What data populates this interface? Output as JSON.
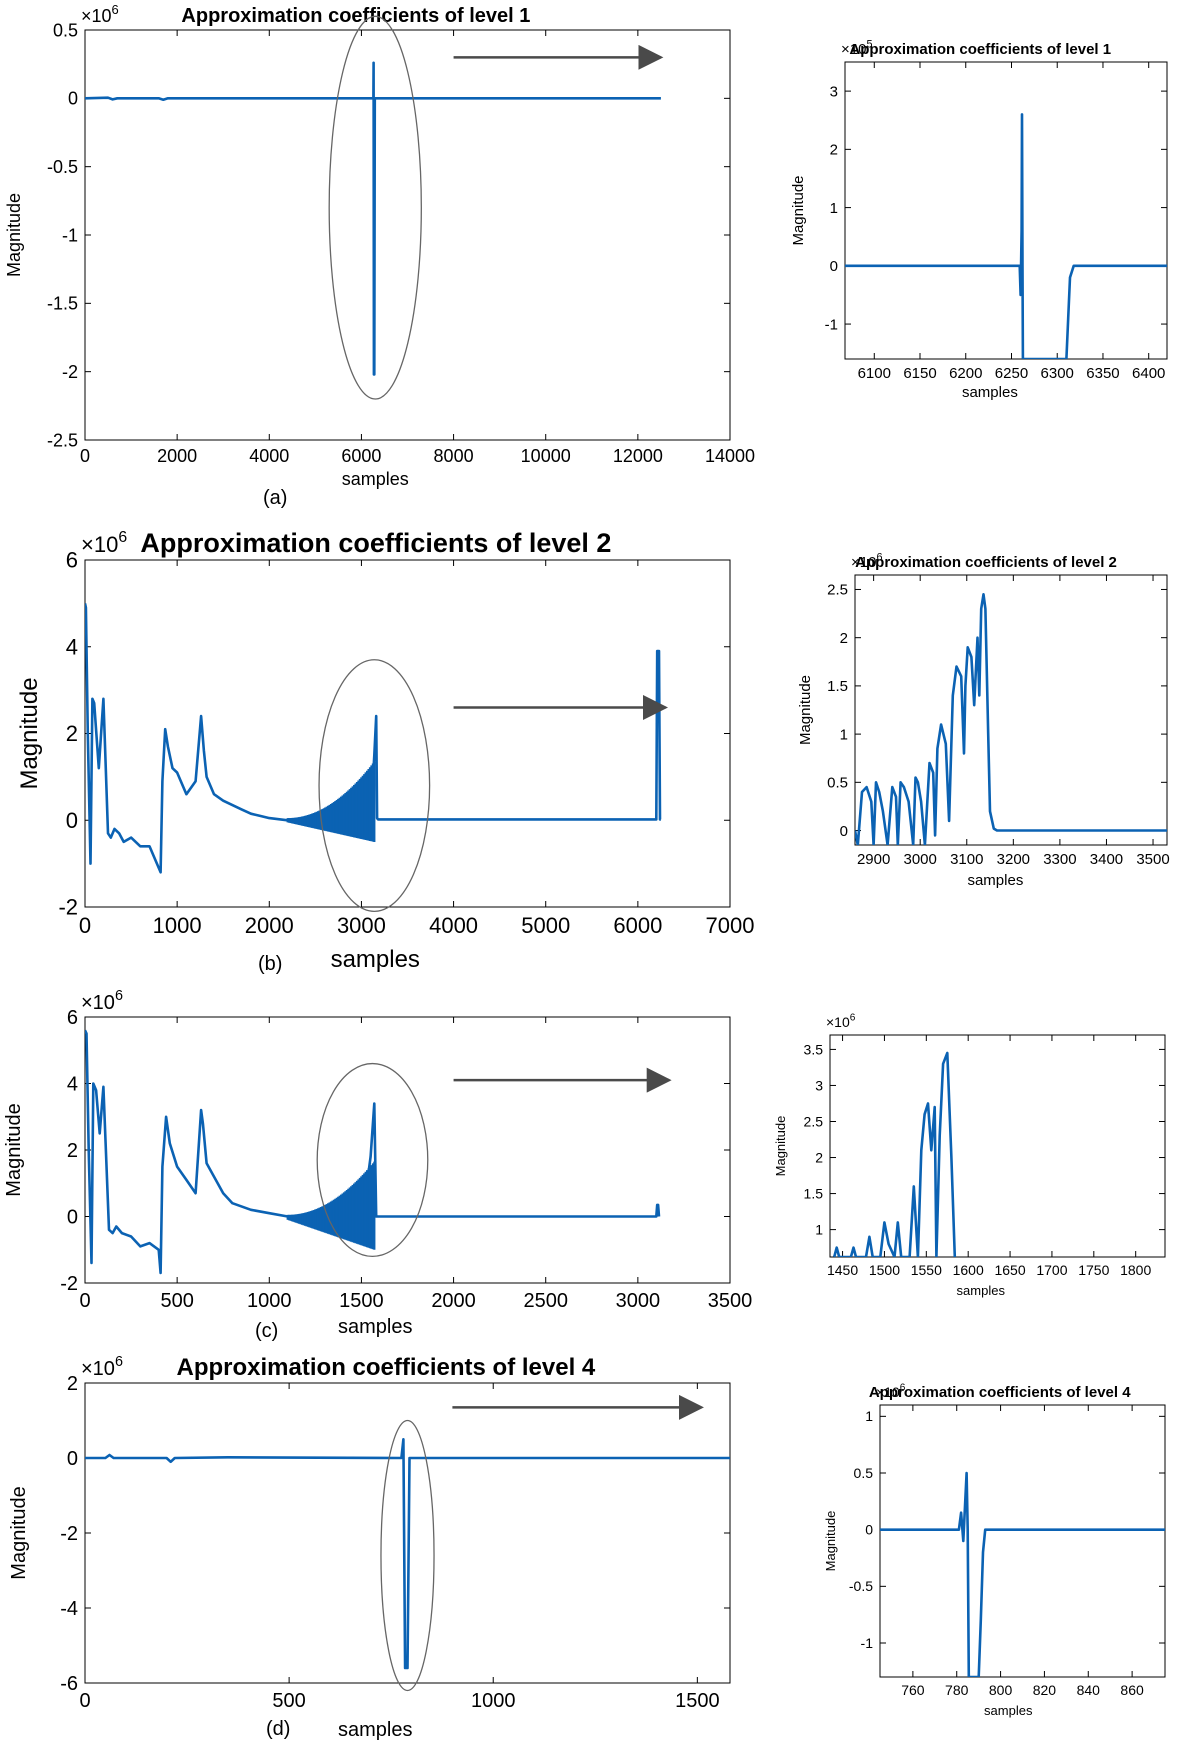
{
  "panel_labels": [
    "(a)",
    "(b)",
    "(c)",
    "(d)"
  ],
  "colors": {
    "line": "#0b62b3",
    "ellipse": "#666666",
    "arrow": "#4a4a4a",
    "axis": "#000000"
  },
  "chart_data": [
    {
      "id": "a-main",
      "type": "line",
      "title": "Approximation coefficients of level 1",
      "xlabel": "samples",
      "ylabel": "Magnitude",
      "exponent": "6",
      "xlim": [
        0,
        14000
      ],
      "ylim": [
        -2.5,
        0.5
      ],
      "xticks": [
        0,
        2000,
        4000,
        6000,
        8000,
        10000,
        12000,
        14000
      ],
      "xtick_labels": [
        "0",
        "2000",
        "4000",
        "6000",
        "8000",
        "10000",
        "12000",
        "14000"
      ],
      "yticks": [
        0.5,
        0,
        -0.5,
        -1,
        -1.5,
        -2,
        -2.5
      ],
      "ytick_labels": [
        "0.5",
        "0",
        "-0.5",
        "-1",
        "-1.5",
        "-2",
        "-2.5"
      ],
      "series": [
        {
          "x": [
            0,
            500,
            600,
            700,
            1600,
            1700,
            1800,
            3000,
            6200,
            6260,
            6265,
            6270,
            6280,
            6290,
            6320,
            9000,
            12500
          ],
          "y": [
            0,
            0.005,
            -0.008,
            0,
            0,
            -0.01,
            0,
            0,
            0,
            0,
            0.26,
            -2.02,
            -2.02,
            0,
            0,
            0,
            0
          ]
        }
      ],
      "highlight_ellipse": {
        "cx": 6300,
        "cy": -0.8,
        "rx": 1000,
        "ry": 1.4
      },
      "arrow": {
        "x1": 8000,
        "x2": 12500,
        "y": 0.3
      }
    },
    {
      "id": "a-zoom",
      "type": "line",
      "title": "Approximation coefficients of level 1",
      "xlabel": "samples",
      "ylabel": "Magnitude",
      "exponent": "5",
      "xlim": [
        6068,
        6420
      ],
      "ylim": [
        -1.6,
        3.5
      ],
      "xticks": [
        6100,
        6150,
        6200,
        6250,
        6300,
        6350,
        6400
      ],
      "xtick_labels": [
        "6100",
        "6150",
        "6200",
        "6250",
        "6300",
        "6350",
        "6400"
      ],
      "yticks": [
        3,
        2,
        1,
        0,
        -1
      ],
      "ytick_labels": [
        "3",
        "2",
        "1",
        "0",
        "-1"
      ],
      "series": [
        {
          "x": [
            6068,
            6258,
            6259,
            6260,
            6261,
            6261.5,
            6262,
            6262.5,
            6310,
            6312,
            6314,
            6318,
            6325,
            6420
          ],
          "y": [
            0,
            0,
            0,
            -0.5,
            0.6,
            2.6,
            0,
            -1.6,
            -1.6,
            -0.9,
            -0.2,
            0,
            0,
            0
          ]
        }
      ]
    },
    {
      "id": "b-main",
      "type": "line",
      "title": "Approximation coefficients of level 2",
      "xlabel": "samples",
      "ylabel": "Magnitude",
      "exponent": "6",
      "xlim": [
        0,
        7000
      ],
      "ylim": [
        -2,
        6
      ],
      "xticks": [
        0,
        1000,
        2000,
        3000,
        4000,
        5000,
        6000,
        7000
      ],
      "xtick_labels": [
        "0",
        "1000",
        "2000",
        "3000",
        "4000",
        "5000",
        "6000",
        "7000"
      ],
      "yticks": [
        6,
        4,
        2,
        0,
        -2
      ],
      "ytick_labels": [
        "6",
        "4",
        "2",
        "0",
        "-2"
      ],
      "series": [
        {
          "x": [
            0,
            10,
            30,
            60,
            80,
            100,
            150,
            200,
            250,
            280,
            320,
            370,
            420,
            500,
            600,
            700,
            820,
            840,
            870,
            900,
            950,
            1000,
            1100,
            1200,
            1260,
            1290,
            1320,
            1400,
            1500,
            1600,
            1700,
            1800,
            1900,
            2000,
            2200,
            2400,
            2600,
            2800,
            3000,
            3100,
            3140,
            3160,
            3170,
            3180,
            3200,
            3600,
            4500,
            5500,
            6200,
            6210,
            6230,
            6240,
            6250
          ],
          "y": [
            5,
            4.9,
            2,
            -1,
            2.8,
            2.7,
            1.2,
            2.8,
            -0.3,
            -0.4,
            -0.2,
            -0.3,
            -0.5,
            -0.4,
            -0.6,
            -0.6,
            -1.2,
            0.9,
            2.1,
            1.7,
            1.2,
            1.1,
            0.6,
            0.9,
            2.4,
            1.6,
            1.0,
            0.6,
            0.45,
            0.35,
            0.25,
            0.15,
            0.1,
            0.05,
            0.0,
            -0.05,
            0.0,
            -0.3,
            -0.3,
            0.0,
            1.5,
            2.4,
            0.05,
            0.02,
            0.02,
            0.02,
            0.02,
            0.02,
            0.02,
            3.9,
            3.9,
            0.02,
            0.02
          ]
        }
      ],
      "highlight_ellipse": {
        "cx": 3140,
        "cy": 0.8,
        "rx": 600,
        "ry": 2.9
      },
      "arrow": {
        "x1": 4000,
        "x2": 6300,
        "y": 2.6
      }
    },
    {
      "id": "b-zoom",
      "type": "line",
      "title": "Approximation coefficients of level 2",
      "xlabel": "samples",
      "ylabel": "Magnitude",
      "exponent": "6",
      "xlim": [
        2860,
        3530
      ],
      "ylim": [
        -0.15,
        2.65
      ],
      "xticks": [
        2900,
        3000,
        3100,
        3200,
        3300,
        3400,
        3500
      ],
      "xtick_labels": [
        "2900",
        "3000",
        "3100",
        "3200",
        "3300",
        "3400",
        "3500"
      ],
      "yticks": [
        2.5,
        2,
        1.5,
        1,
        0.5,
        0
      ],
      "ytick_labels": [
        "2.5",
        "2",
        "1.5",
        "1",
        "0.5",
        "0"
      ],
      "series": [
        {
          "x": [
            2860,
            2866,
            2875,
            2885,
            2895,
            2900,
            2905,
            2912,
            2920,
            2930,
            2940,
            2948,
            2952,
            2958,
            2965,
            2975,
            2985,
            2990,
            2995,
            3002,
            3010,
            3020,
            3028,
            3032,
            3037,
            3045,
            3055,
            3062,
            3065,
            3070,
            3078,
            3088,
            3094,
            3097,
            3102,
            3110,
            3116,
            3119,
            3123,
            3127,
            3131,
            3136,
            3140,
            3146,
            3150,
            3158,
            3165,
            3530
          ],
          "y": [
            0.0,
            -0.15,
            0.4,
            0.45,
            0.3,
            -0.15,
            0.5,
            0.4,
            0.2,
            -0.15,
            0.45,
            0.35,
            -0.15,
            0.5,
            0.45,
            0.3,
            -0.15,
            0.55,
            0.5,
            0.3,
            -0.15,
            0.7,
            0.6,
            -0.05,
            0.85,
            1.1,
            0.9,
            0.1,
            0.6,
            1.4,
            1.7,
            1.6,
            0.8,
            1.5,
            1.9,
            1.8,
            1.3,
            1.6,
            2.0,
            1.4,
            2.3,
            2.45,
            2.3,
            1.0,
            0.2,
            0.02,
            0.0,
            0.0
          ]
        }
      ]
    },
    {
      "id": "c-main",
      "type": "line",
      "title": "",
      "xlabel": "samples",
      "ylabel": "Magnitude",
      "exponent": "6",
      "xlim": [
        0,
        3500
      ],
      "ylim": [
        -2,
        6
      ],
      "xticks": [
        0,
        500,
        1000,
        1500,
        2000,
        2500,
        3000,
        3500
      ],
      "xtick_labels": [
        "0",
        "500",
        "1000",
        "1500",
        "2000",
        "2500",
        "3000",
        "3500"
      ],
      "yticks": [
        6,
        4,
        2,
        0,
        -2
      ],
      "ytick_labels": [
        "6",
        "4",
        "2",
        "0",
        "-2"
      ],
      "series": [
        {
          "x": [
            0,
            8,
            20,
            35,
            45,
            60,
            80,
            100,
            130,
            150,
            170,
            200,
            250,
            300,
            350,
            400,
            410,
            420,
            440,
            460,
            500,
            550,
            600,
            630,
            640,
            660,
            700,
            750,
            800,
            900,
            1000,
            1100,
            1200,
            1300,
            1400,
            1500,
            1550,
            1570,
            1580,
            1590,
            1800,
            2500,
            3100,
            3105,
            3110,
            3115
          ],
          "y": [
            5.6,
            5.5,
            2,
            -1.4,
            4.0,
            3.8,
            2.5,
            3.9,
            -0.4,
            -0.5,
            -0.3,
            -0.5,
            -0.6,
            -0.9,
            -0.8,
            -1.0,
            -1.7,
            1.5,
            3.0,
            2.2,
            1.5,
            1.1,
            0.7,
            3.2,
            2.8,
            1.6,
            1.2,
            0.7,
            0.4,
            0.2,
            0.1,
            0.0,
            -0.1,
            -0.3,
            -0.6,
            -0.3,
            1.8,
            3.4,
            0.0,
            0.0,
            0.0,
            0.0,
            0.0,
            0.35,
            0.35,
            0.0
          ]
        }
      ],
      "highlight_ellipse": {
        "cx": 1560,
        "cy": 1.7,
        "rx": 300,
        "ry": 2.9
      },
      "arrow": {
        "x1": 2000,
        "x2": 3170,
        "y": 4.1
      }
    },
    {
      "id": "c-zoom",
      "type": "line",
      "title": "",
      "xlabel": "samples",
      "ylabel": "Magnitude",
      "exponent": "6",
      "xlim": [
        1435,
        1835
      ],
      "ylim": [
        0.62,
        3.7
      ],
      "xticks": [
        1450,
        1500,
        1550,
        1600,
        1650,
        1700,
        1750,
        1800
      ],
      "xtick_labels": [
        "1450",
        "1500",
        "1550",
        "1600",
        "1650",
        "1700",
        "1750",
        "1800"
      ],
      "yticks": [
        3.5,
        3,
        2.5,
        2,
        1.5,
        1
      ],
      "ytick_labels": [
        "3.5",
        "3",
        "2.5",
        "2",
        "1.5",
        "1"
      ],
      "series": [
        {
          "x": [
            1440,
            1443,
            1446,
            1460,
            1463,
            1466,
            1478,
            1482,
            1486,
            1495,
            1500,
            1505,
            1512,
            1516,
            1520,
            1530,
            1535,
            1540,
            1544,
            1548,
            1552,
            1556,
            1560,
            1562,
            1566,
            1570,
            1575,
            1580,
            1584
          ],
          "y": [
            0.62,
            0.75,
            0.62,
            0.62,
            0.75,
            0.62,
            0.62,
            0.9,
            0.62,
            0.62,
            1.1,
            0.8,
            0.62,
            1.1,
            0.62,
            0.62,
            1.6,
            0.62,
            2.1,
            2.6,
            2.75,
            2.1,
            2.7,
            0.62,
            2.3,
            3.3,
            3.45,
            2.0,
            0.62
          ]
        }
      ]
    },
    {
      "id": "d-main",
      "type": "line",
      "title": "Approximation coefficients of level 4",
      "xlabel": "samples",
      "ylabel": "Magnitude",
      "exponent": "6",
      "xlim": [
        0,
        1580
      ],
      "ylim": [
        -6,
        2
      ],
      "xticks": [
        0,
        500,
        1000,
        1500
      ],
      "xtick_labels": [
        "0",
        "500",
        "1000",
        "1500"
      ],
      "yticks": [
        2,
        0,
        -2,
        -4,
        -6
      ],
      "ytick_labels": [
        "2",
        "0",
        "-2",
        "-4",
        "-6"
      ],
      "series": [
        {
          "x": [
            0,
            50,
            60,
            70,
            200,
            210,
            220,
            350,
            775,
            780,
            784,
            786,
            790,
            795,
            800,
            1000,
            1580
          ],
          "y": [
            0,
            0,
            0.08,
            0,
            0,
            -0.1,
            0,
            0.02,
            0,
            0.5,
            -5.6,
            -5.6,
            -5.6,
            0,
            0,
            0,
            0
          ]
        }
      ],
      "highlight_ellipse": {
        "cx": 790,
        "cy": -2.6,
        "rx": 65,
        "ry": 3.6
      },
      "arrow": {
        "x1": 900,
        "x2": 1510,
        "y": 1.35
      }
    },
    {
      "id": "d-zoom",
      "type": "line",
      "title": "Approximation coefficients of level 4",
      "xlabel": "samples",
      "ylabel": "Magnitude",
      "exponent": "6",
      "xlim": [
        745,
        875
      ],
      "ylim": [
        -1.3,
        1.1
      ],
      "xticks": [
        760,
        780,
        800,
        820,
        840,
        860
      ],
      "xtick_labels": [
        "760",
        "780",
        "800",
        "820",
        "840",
        "860"
      ],
      "yticks": [
        1,
        0.5,
        0,
        -0.5,
        -1
      ],
      "ytick_labels": [
        "1",
        "0.5",
        "0",
        "-0.5",
        "-1"
      ],
      "series": [
        {
          "x": [
            745,
            781,
            782,
            783,
            784,
            784.5,
            785,
            785.5,
            790,
            791,
            792,
            793,
            795,
            875
          ],
          "y": [
            0,
            0,
            0.15,
            -0.1,
            0.3,
            0.5,
            0.0,
            -1.3,
            -1.3,
            -0.8,
            -0.2,
            0.0,
            0.0,
            0.0
          ]
        }
      ]
    }
  ]
}
